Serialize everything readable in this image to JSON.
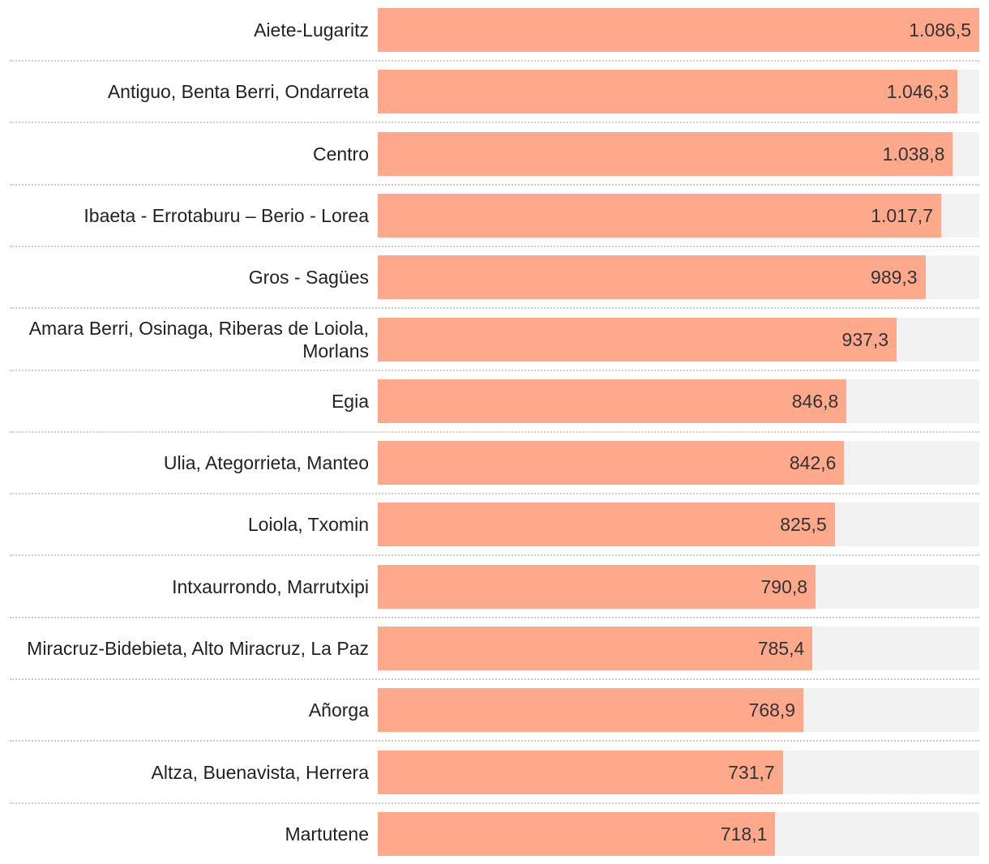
{
  "chart_data": {
    "type": "bar",
    "orientation": "horizontal",
    "title": "",
    "xlabel": "",
    "ylabel": "",
    "xlim": [
      0,
      1086.5
    ],
    "grid": false,
    "bar_color": "#ffa98c",
    "track_color": "#f2f2f2",
    "categories": [
      "Aiete-Lugaritz",
      "Antiguo, Benta Berri, Ondarreta",
      "Centro",
      "Ibaeta - Errotaburu – Berio - Lorea",
      "Gros - Sagües",
      "Amara Berri, Osinaga, Riberas de Loiola, Morlans",
      "Egia",
      "Ulia, Ategorrieta, Manteo",
      "Loiola, Txomin",
      "Intxaurrondo, Marrutxipi",
      "Miracruz-Bidebieta, Alto Miracruz, La Paz",
      "Añorga",
      "Altza, Buenavista, Herrera",
      "Martutene"
    ],
    "values": [
      1086.5,
      1046.3,
      1038.8,
      1017.7,
      989.3,
      937.3,
      846.8,
      842.6,
      825.5,
      790.8,
      785.4,
      768.9,
      731.7,
      718.1
    ],
    "value_labels": [
      "1.086,5",
      "1.046,3",
      "1.038,8",
      "1.017,7",
      "989,3",
      "937,3",
      "846,8",
      "842,6",
      "825,5",
      "790,8",
      "785,4",
      "768,9",
      "731,7",
      "718,1"
    ]
  }
}
